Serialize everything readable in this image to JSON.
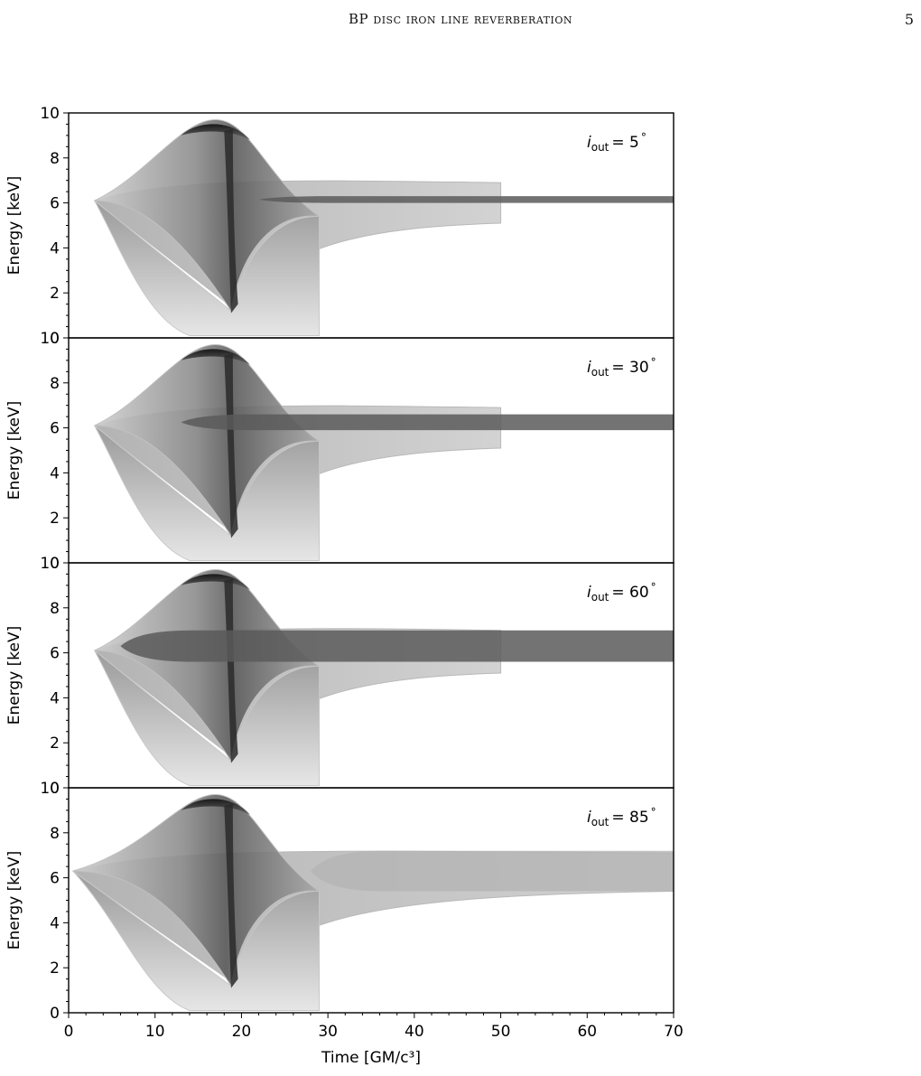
{
  "header": {
    "running_title": "BP disc iron line reverberation",
    "page_number": "5"
  },
  "colors": {
    "outer_profile": "#c8c8c8",
    "dark_ridge": "#2a2a2a",
    "tail_band": "#5a5a5a",
    "axes": "#000000"
  },
  "chart_data": {
    "type": "heatmap",
    "colormap": "grayscale",
    "shared_x": true,
    "xlabel": "Time [GM/c³]",
    "xlim": [
      0,
      70
    ],
    "x_ticks": [
      0,
      10,
      20,
      30,
      40,
      50,
      60,
      70
    ],
    "ylabel": "Energy [keV]",
    "ylim": [
      0,
      10
    ],
    "y_ticks": [
      0,
      2,
      4,
      6,
      8,
      10
    ],
    "panels": [
      {
        "label_var": "i",
        "label_sub": "out",
        "label_value": "= 5",
        "label_unit": "°",
        "outer_disc": {
          "start_time": 3,
          "peak_time": 17,
          "peak_energy": 9.7,
          "caustic_time": 18.8,
          "cutoff_time": 29,
          "line_energy": 6.1
        },
        "outer_tail": {
          "start_time": 22,
          "end_time": 70,
          "energy_low": 6.0,
          "energy_high": 6.3
        },
        "inner_envelope": {
          "end_time": 50,
          "energy_low": 5.1,
          "energy_high": 7.0
        }
      },
      {
        "label_var": "i",
        "label_sub": "out",
        "label_value": "= 30",
        "label_unit": "°",
        "outer_disc": {
          "start_time": 3,
          "peak_time": 17,
          "peak_energy": 9.7,
          "caustic_time": 18.8,
          "cutoff_time": 29,
          "line_energy": 6.1
        },
        "outer_tail": {
          "start_time": 13,
          "end_time": 70,
          "energy_low": 5.9,
          "energy_high": 6.6
        },
        "inner_envelope": {
          "end_time": 50,
          "energy_low": 5.1,
          "energy_high": 7.0
        }
      },
      {
        "label_var": "i",
        "label_sub": "out",
        "label_value": "= 60",
        "label_unit": "°",
        "outer_disc": {
          "start_time": 3,
          "peak_time": 17,
          "peak_energy": 9.7,
          "caustic_time": 18.8,
          "cutoff_time": 29,
          "line_energy": 6.1
        },
        "outer_tail": {
          "start_time": 6,
          "end_time": 70,
          "energy_low": 5.6,
          "energy_high": 7.0
        },
        "inner_envelope": {
          "end_time": 50,
          "energy_low": 5.1,
          "energy_high": 7.1
        }
      },
      {
        "label_var": "i",
        "label_sub": "out",
        "label_value": "= 85",
        "label_unit": "°",
        "outer_disc": {
          "start_time": 0.5,
          "peak_time": 17,
          "peak_energy": 9.7,
          "caustic_time": 18.8,
          "cutoff_time": 29,
          "line_energy": 6.3
        },
        "outer_tail": {
          "start_time": 28,
          "end_time": 70,
          "energy_low": 5.4,
          "energy_high": 7.2
        },
        "inner_envelope": {
          "end_time": 70,
          "energy_low": 5.4,
          "energy_high": 7.2
        }
      }
    ]
  }
}
